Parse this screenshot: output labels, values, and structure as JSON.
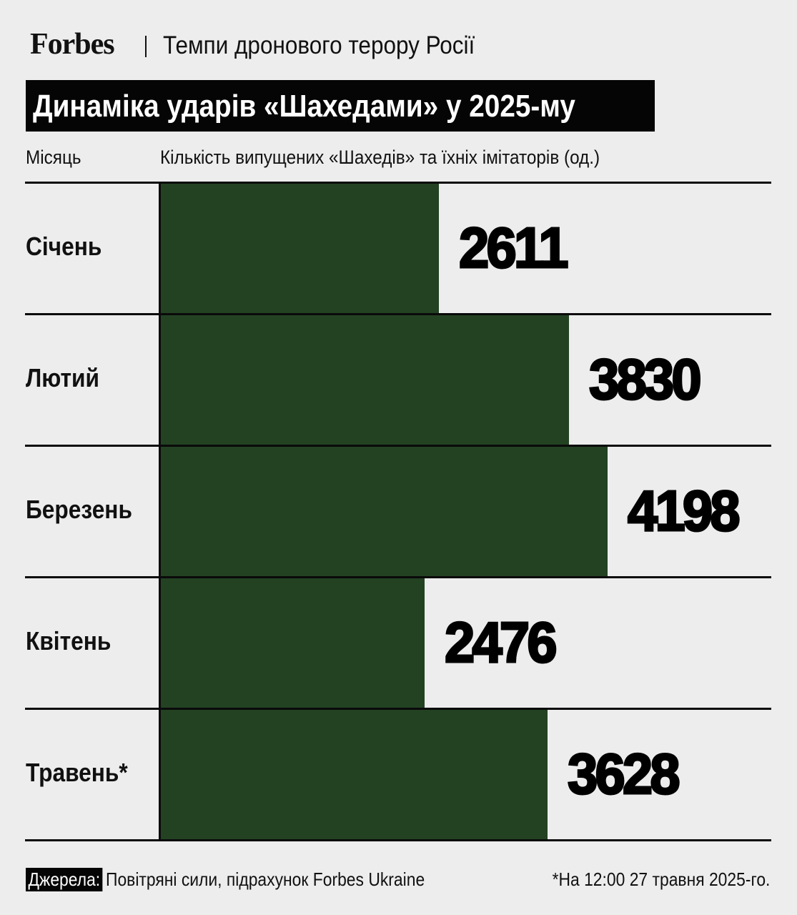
{
  "header": {
    "brand": "Forbes",
    "subtitle": "Темпи дронового терору Росії"
  },
  "chart_data": {
    "type": "bar",
    "orientation": "horizontal",
    "title": "Динаміка ударів «Шахедами» у 2025-му",
    "category_header": "Місяць",
    "value_header": "Кількість випущених «Шахедів» та їхніх імітаторів (од.)",
    "categories": [
      "Січень",
      "Лютий",
      "Березень",
      "Квітень",
      "Травень*"
    ],
    "values": [
      2611,
      3830,
      4198,
      2476,
      3628
    ],
    "bar_color": "#234222",
    "data_labels": true,
    "grid": false
  },
  "footer": {
    "source_label": "Джерела:",
    "source": "Повітряні сили, підрахунок Forbes Ukraine",
    "note": "*На 12:00 27 травня 2025-го."
  }
}
